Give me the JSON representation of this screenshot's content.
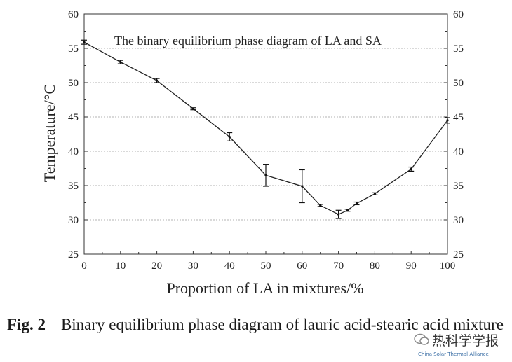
{
  "chart_data": {
    "type": "line",
    "title": "The binary equilibrium phase diagram of LA and SA",
    "xlabel": "Proportion of LA in mixtures/%",
    "ylabel": "Temperature/°C",
    "xlim": [
      0,
      100
    ],
    "ylim": [
      25,
      60
    ],
    "xticks": [
      "0",
      "10",
      "20",
      "30",
      "40",
      "50",
      "60",
      "70",
      "80",
      "90",
      "100"
    ],
    "yticks": [
      "25",
      "30",
      "35",
      "40",
      "45",
      "50",
      "55",
      "60"
    ],
    "grid": "horizontal dotted",
    "series": [
      {
        "x": [
          0,
          10,
          20,
          30,
          40,
          50,
          60,
          65,
          70,
          72.5,
          75,
          80,
          90,
          100
        ],
        "y": [
          55.9,
          53.0,
          50.3,
          46.2,
          42.1,
          36.5,
          34.9,
          32.1,
          30.8,
          31.4,
          32.4,
          33.8,
          37.4,
          44.5
        ],
        "error": [
          0.3,
          0.25,
          0.3,
          0.15,
          0.6,
          1.6,
          2.4,
          0.15,
          0.6,
          0.15,
          0.2,
          0.15,
          0.3,
          0.4
        ]
      }
    ]
  },
  "caption": {
    "label": "Fig. 2",
    "text": "Binary equilibrium phase diagram of lauric acid-stearic acid mixture"
  },
  "watermark": {
    "text": "热科学学报",
    "subtext": "China Solar Thermal Alliance"
  }
}
